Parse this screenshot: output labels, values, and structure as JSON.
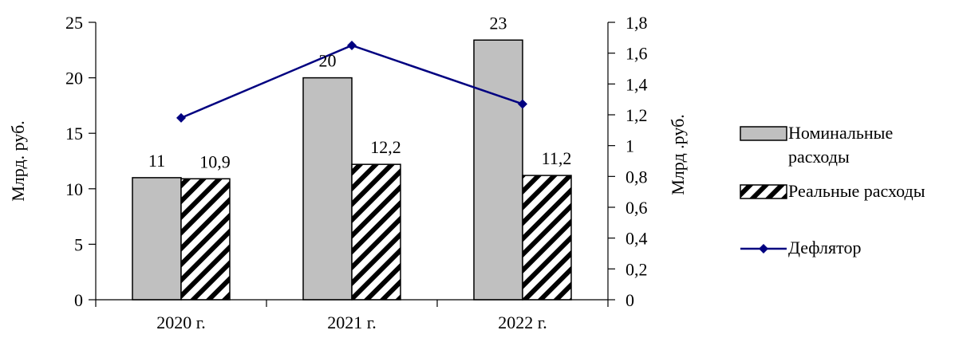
{
  "chart_data": {
    "type": "bar",
    "categories": [
      "2020 г.",
      "2021 г.",
      "2022 г."
    ],
    "series": [
      {
        "name": "Номинальные расходы",
        "legend_lines": [
          "Номинальные",
          "расходы"
        ],
        "kind": "bar",
        "axis": "left",
        "values": [
          11,
          20,
          23.4
        ],
        "labels": [
          "11",
          "20",
          "23"
        ],
        "color": "#c0c0c0",
        "pattern": "solid"
      },
      {
        "name": "Реальные расходы",
        "legend_lines": [
          "Реальные расходы"
        ],
        "kind": "bar",
        "axis": "left",
        "values": [
          10.9,
          12.2,
          11.2
        ],
        "labels": [
          "10,9",
          "12,2",
          "11,2"
        ],
        "color": "#000000",
        "pattern": "diagonal-hatch"
      },
      {
        "name": "Дефлятор",
        "legend_lines": [
          "Дефлятор"
        ],
        "kind": "line",
        "axis": "right",
        "values": [
          1.18,
          1.65,
          1.27
        ],
        "color": "#000080",
        "marker": "diamond"
      }
    ],
    "ylabel": "Млрд. руб.",
    "y2label": "Млрд .руб.",
    "ylim": [
      0,
      25
    ],
    "y_ticks": [
      "0",
      "5",
      "10",
      "15",
      "20",
      "25"
    ],
    "y_tick_values": [
      0,
      5,
      10,
      15,
      20,
      25
    ],
    "y2lim": [
      0,
      1.8
    ],
    "y2_ticks": [
      "0",
      "0,2",
      "0,4",
      "0,6",
      "0,8",
      "1",
      "1,2",
      "1,4",
      "1,6",
      "1,8"
    ],
    "y2_tick_values": [
      0,
      0.2,
      0.4,
      0.6,
      0.8,
      1,
      1.2,
      1.4,
      1.6,
      1.8
    ],
    "grid": false,
    "legend_position": "right"
  }
}
